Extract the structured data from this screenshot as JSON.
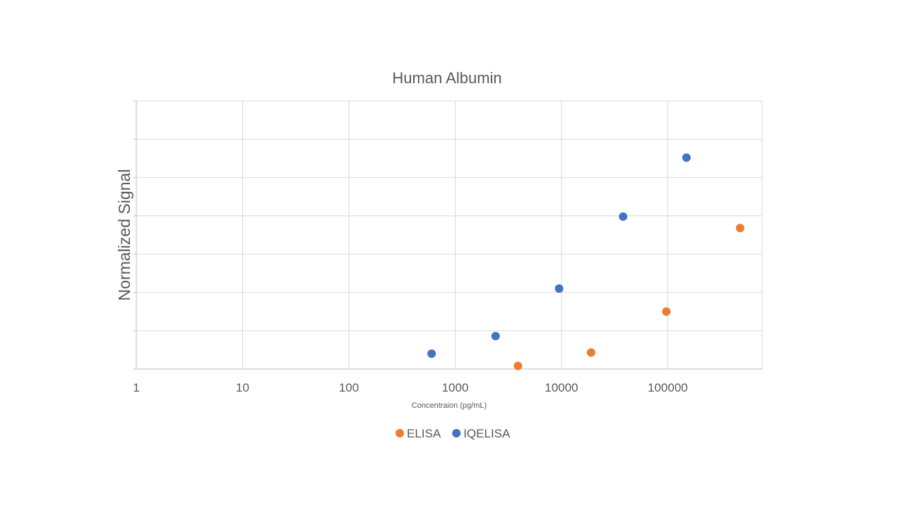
{
  "chart_data": {
    "type": "scatter",
    "title": "Human Albumin",
    "xlabel": "Concentraion (pg/mL)",
    "ylabel": "Normalized Signal",
    "x_scale": "log",
    "xlim": [
      1,
      800000
    ],
    "ylim": [
      0,
      7
    ],
    "x_tick_labels": [
      "1",
      "10",
      "100",
      "1000",
      "10000",
      "100000"
    ],
    "y_tick_labels_visible": false,
    "grid": true,
    "legend_position": "bottom",
    "series": [
      {
        "name": "ELISA",
        "color": "#ed7d31",
        "points": [
          {
            "x": 3900,
            "y": 0.08
          },
          {
            "x": 19000,
            "y": 0.43
          },
          {
            "x": 97000,
            "y": 1.5
          },
          {
            "x": 480000,
            "y": 3.68
          }
        ]
      },
      {
        "name": "IQELISA",
        "color": "#4472c4",
        "points": [
          {
            "x": 600,
            "y": 0.4
          },
          {
            "x": 2400,
            "y": 0.86
          },
          {
            "x": 9500,
            "y": 2.1
          },
          {
            "x": 38000,
            "y": 3.98
          },
          {
            "x": 150000,
            "y": 5.52
          }
        ]
      }
    ]
  }
}
